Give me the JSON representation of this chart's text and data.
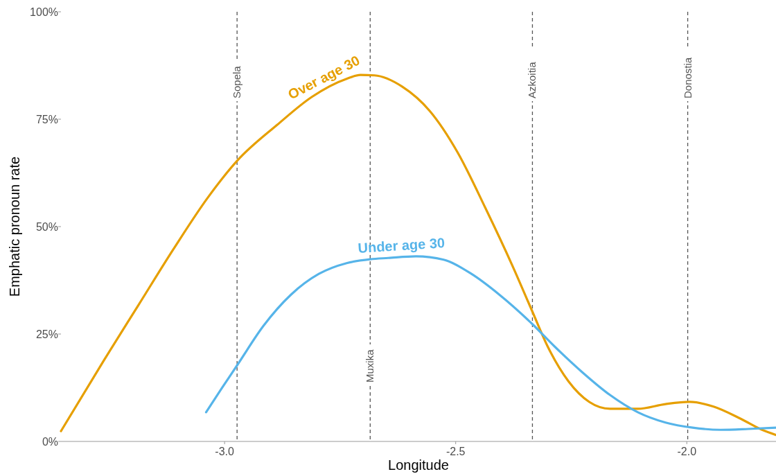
{
  "chart_data": {
    "type": "line",
    "xlabel": "Longitude",
    "ylabel": "Emphatic pronoun rate",
    "xlim": [
      -3.354,
      -1.807
    ],
    "xticks": [
      {
        "value": -3,
        "label": "-3.0"
      },
      -2.5,
      {
        "value": -2,
        "label": "-2.0"
      }
    ],
    "ylim": [
      0,
      100
    ],
    "yticks": [
      {
        "value": 0,
        "label": "0%"
      },
      {
        "value": 25,
        "label": "25%"
      },
      {
        "value": 50,
        "label": "50%"
      },
      {
        "value": 75,
        "label": "75%"
      },
      {
        "value": 100,
        "label": "100%"
      }
    ],
    "grid": false,
    "line_style": "solid",
    "marker": "none",
    "series": [
      {
        "name": "Over age 30",
        "color": "#e69f00",
        "x": [
          -3.354,
          -3.261,
          -3.186,
          -3.111,
          -3.036,
          -2.973,
          -2.886,
          -2.811,
          -2.736,
          -2.706,
          -2.676,
          -2.616,
          -2.556,
          -2.496,
          -2.436,
          -2.376,
          -2.334,
          -2.301,
          -2.256,
          -2.211,
          -2.166,
          -2.106,
          -2.046,
          -1.994,
          -1.942,
          -1.882,
          -1.837,
          -1.807
        ],
        "values": [
          2.4,
          18.9,
          31.8,
          44.7,
          56.8,
          65.3,
          73.7,
          80.2,
          84.4,
          85.3,
          85.2,
          82.6,
          76.9,
          67.3,
          54.4,
          40.6,
          30.2,
          22.1,
          14,
          9.2,
          7.6,
          7.6,
          8.7,
          9.2,
          8.1,
          5.2,
          2.7,
          1.5
        ]
      },
      {
        "name": "Under age 30",
        "color": "#56b4e9",
        "x": [
          -3.04,
          -3.006,
          -2.973,
          -2.916,
          -2.856,
          -2.796,
          -2.736,
          -2.685,
          -2.646,
          -2.586,
          -2.526,
          -2.466,
          -2.406,
          -2.334,
          -2.286,
          -2.226,
          -2.166,
          -2.106,
          -2.046,
          -1.987,
          -1.927,
          -1.867,
          -1.807
        ],
        "values": [
          6.8,
          12.4,
          17.7,
          26.9,
          34.2,
          39,
          41.5,
          42.4,
          42.7,
          43.1,
          42.3,
          39,
          34.2,
          27.3,
          22.1,
          16.1,
          10.8,
          6.8,
          4.4,
          3.2,
          2.7,
          2.9,
          3.2
        ]
      }
    ],
    "ref_lines": [
      {
        "axis": "x",
        "value": -2.973,
        "label": "Sopela",
        "color": "#555555",
        "line_style": "dashed"
      },
      {
        "axis": "x",
        "value": -2.685,
        "label": "Muxika",
        "color": "#555555",
        "line_style": "dashed"
      },
      {
        "axis": "x",
        "value": -2.334,
        "label": "Azkoitia",
        "color": "#555555",
        "line_style": "dashed"
      },
      {
        "axis": "x",
        "value": -1.998,
        "label": "Donostia",
        "color": "#555555",
        "line_style": "dashed"
      }
    ]
  }
}
